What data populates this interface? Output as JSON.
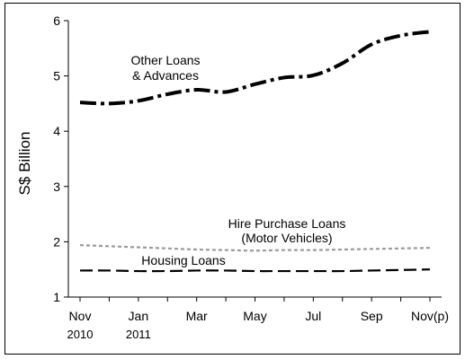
{
  "chart_data": {
    "type": "line",
    "ylabel": "S$ Billion",
    "ylim": [
      1,
      6
    ],
    "yticks": [
      1,
      2,
      3,
      4,
      5,
      6
    ],
    "x": [
      "Nov 2010",
      "Dec 2010",
      "Jan 2011",
      "Feb 2011",
      "Mar 2011",
      "Apr 2011",
      "May 2011",
      "Jun 2011",
      "Jul 2011",
      "Aug 2011",
      "Sep 2011",
      "Oct 2011",
      "Nov 2011"
    ],
    "xtick_labels": [
      {
        "label": "Nov",
        "sub": "2010"
      },
      {
        "label": "Jan",
        "sub": "2011"
      },
      {
        "label": "Mar",
        "sub": ""
      },
      {
        "label": "May",
        "sub": ""
      },
      {
        "label": "Jul",
        "sub": ""
      },
      {
        "label": "Sep",
        "sub": ""
      },
      {
        "label": "Nov(p)",
        "sub": ""
      }
    ],
    "grid": false,
    "series": [
      {
        "name": "Other Loans & Advances",
        "label_lines": [
          "Other Loans",
          "& Advances"
        ],
        "values": [
          4.52,
          4.5,
          4.55,
          4.67,
          4.75,
          4.71,
          4.85,
          4.97,
          5.01,
          5.23,
          5.57,
          5.73,
          5.8
        ],
        "color": "#000000",
        "style": "dash-dot-thick"
      },
      {
        "name": "Hire Purchase Loans (Motor Vehicles)",
        "label_lines": [
          "Hire Purchase Loans",
          "(Motor Vehicles)"
        ],
        "values": [
          1.94,
          1.92,
          1.9,
          1.88,
          1.86,
          1.85,
          1.84,
          1.85,
          1.85,
          1.86,
          1.87,
          1.88,
          1.89
        ],
        "color": "#9a9a9a",
        "style": "dotted"
      },
      {
        "name": "Housing Loans",
        "label_lines": [
          "Housing Loans"
        ],
        "values": [
          1.48,
          1.48,
          1.47,
          1.47,
          1.48,
          1.48,
          1.47,
          1.47,
          1.47,
          1.47,
          1.48,
          1.49,
          1.5
        ],
        "color": "#000000",
        "style": "long-dash"
      }
    ]
  }
}
